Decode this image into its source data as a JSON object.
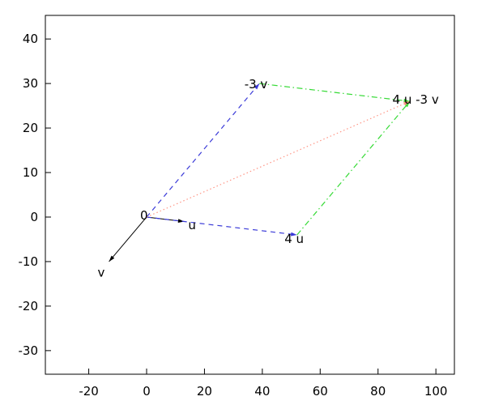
{
  "chart_data": {
    "type": "line",
    "subtype": "vector-plot",
    "title": "",
    "xlabel": "",
    "ylabel": "",
    "grid": false,
    "legend": "none",
    "background": "#ffffff",
    "border_color": "#000000",
    "xlim": [
      -35,
      106.4
    ],
    "ylim": [
      -35.3,
      45.3
    ],
    "x_ticks": [
      -20,
      0,
      20,
      40,
      60,
      80,
      100
    ],
    "y_ticks": [
      -30,
      -20,
      -10,
      0,
      10,
      20,
      30,
      40
    ],
    "colors": {
      "black_vector": "#000000",
      "blue_vector": "#3a3ad8",
      "green_vector": "#35da35",
      "salmon_vector": "#ff9585"
    },
    "vectors": [
      {
        "name": "v",
        "from": [
          0,
          0
        ],
        "to": [
          -13,
          -10
        ],
        "color": "#000000",
        "style": "solid",
        "arrow": true
      },
      {
        "name": "u",
        "from": [
          0,
          0
        ],
        "to": [
          13,
          -1
        ],
        "color": "#000000",
        "style": "solid",
        "arrow": true
      },
      {
        "name": "minus-3v",
        "from": [
          0,
          0
        ],
        "to": [
          39,
          30
        ],
        "color": "#3a3ad8",
        "style": "dashed",
        "arrow": true
      },
      {
        "name": "4u",
        "from": [
          0,
          0
        ],
        "to": [
          52,
          -4
        ],
        "color": "#3a3ad8",
        "style": "dashed",
        "arrow": true
      },
      {
        "name": "top-edge",
        "from": [
          39,
          30
        ],
        "to": [
          91,
          26
        ],
        "color": "#35da35",
        "style": "dashdot",
        "arrow": true
      },
      {
        "name": "right-edge",
        "from": [
          52,
          -4
        ],
        "to": [
          91,
          26
        ],
        "color": "#35da35",
        "style": "dashdot",
        "arrow": true
      },
      {
        "name": "diagonal-sum",
        "from": [
          0,
          0
        ],
        "to": [
          91,
          26
        ],
        "color": "#ff9585",
        "style": "dotted",
        "arrow": true
      }
    ],
    "labels": [
      {
        "text": "0",
        "x": -0.9,
        "y": 0.4
      },
      {
        "text": "u",
        "x": 15.7,
        "y": -1.8
      },
      {
        "text": "v",
        "x": -15.7,
        "y": -12.5
      },
      {
        "text": "-3 v",
        "x": 37.8,
        "y": 29.8
      },
      {
        "text": "4 u",
        "x": 51.0,
        "y": -4.9
      },
      {
        "text": "4 u -3 v",
        "x": 93.0,
        "y": 26.4
      }
    ]
  }
}
